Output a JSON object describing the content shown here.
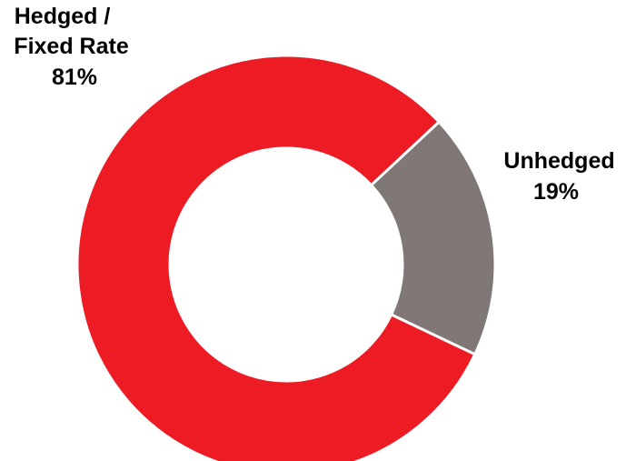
{
  "chart_data": {
    "type": "pie",
    "variant": "donut",
    "slices": [
      {
        "label_lines": [
          "Hedged /",
          "Fixed Rate"
        ],
        "value": 81,
        "value_label": "81%",
        "color": "#ED1C24"
      },
      {
        "label_lines": [
          "Unhedged"
        ],
        "value": 19,
        "value_label": "19%",
        "color": "#7F7877"
      }
    ],
    "legend": "none",
    "separator_color": "#FFFFFF"
  }
}
